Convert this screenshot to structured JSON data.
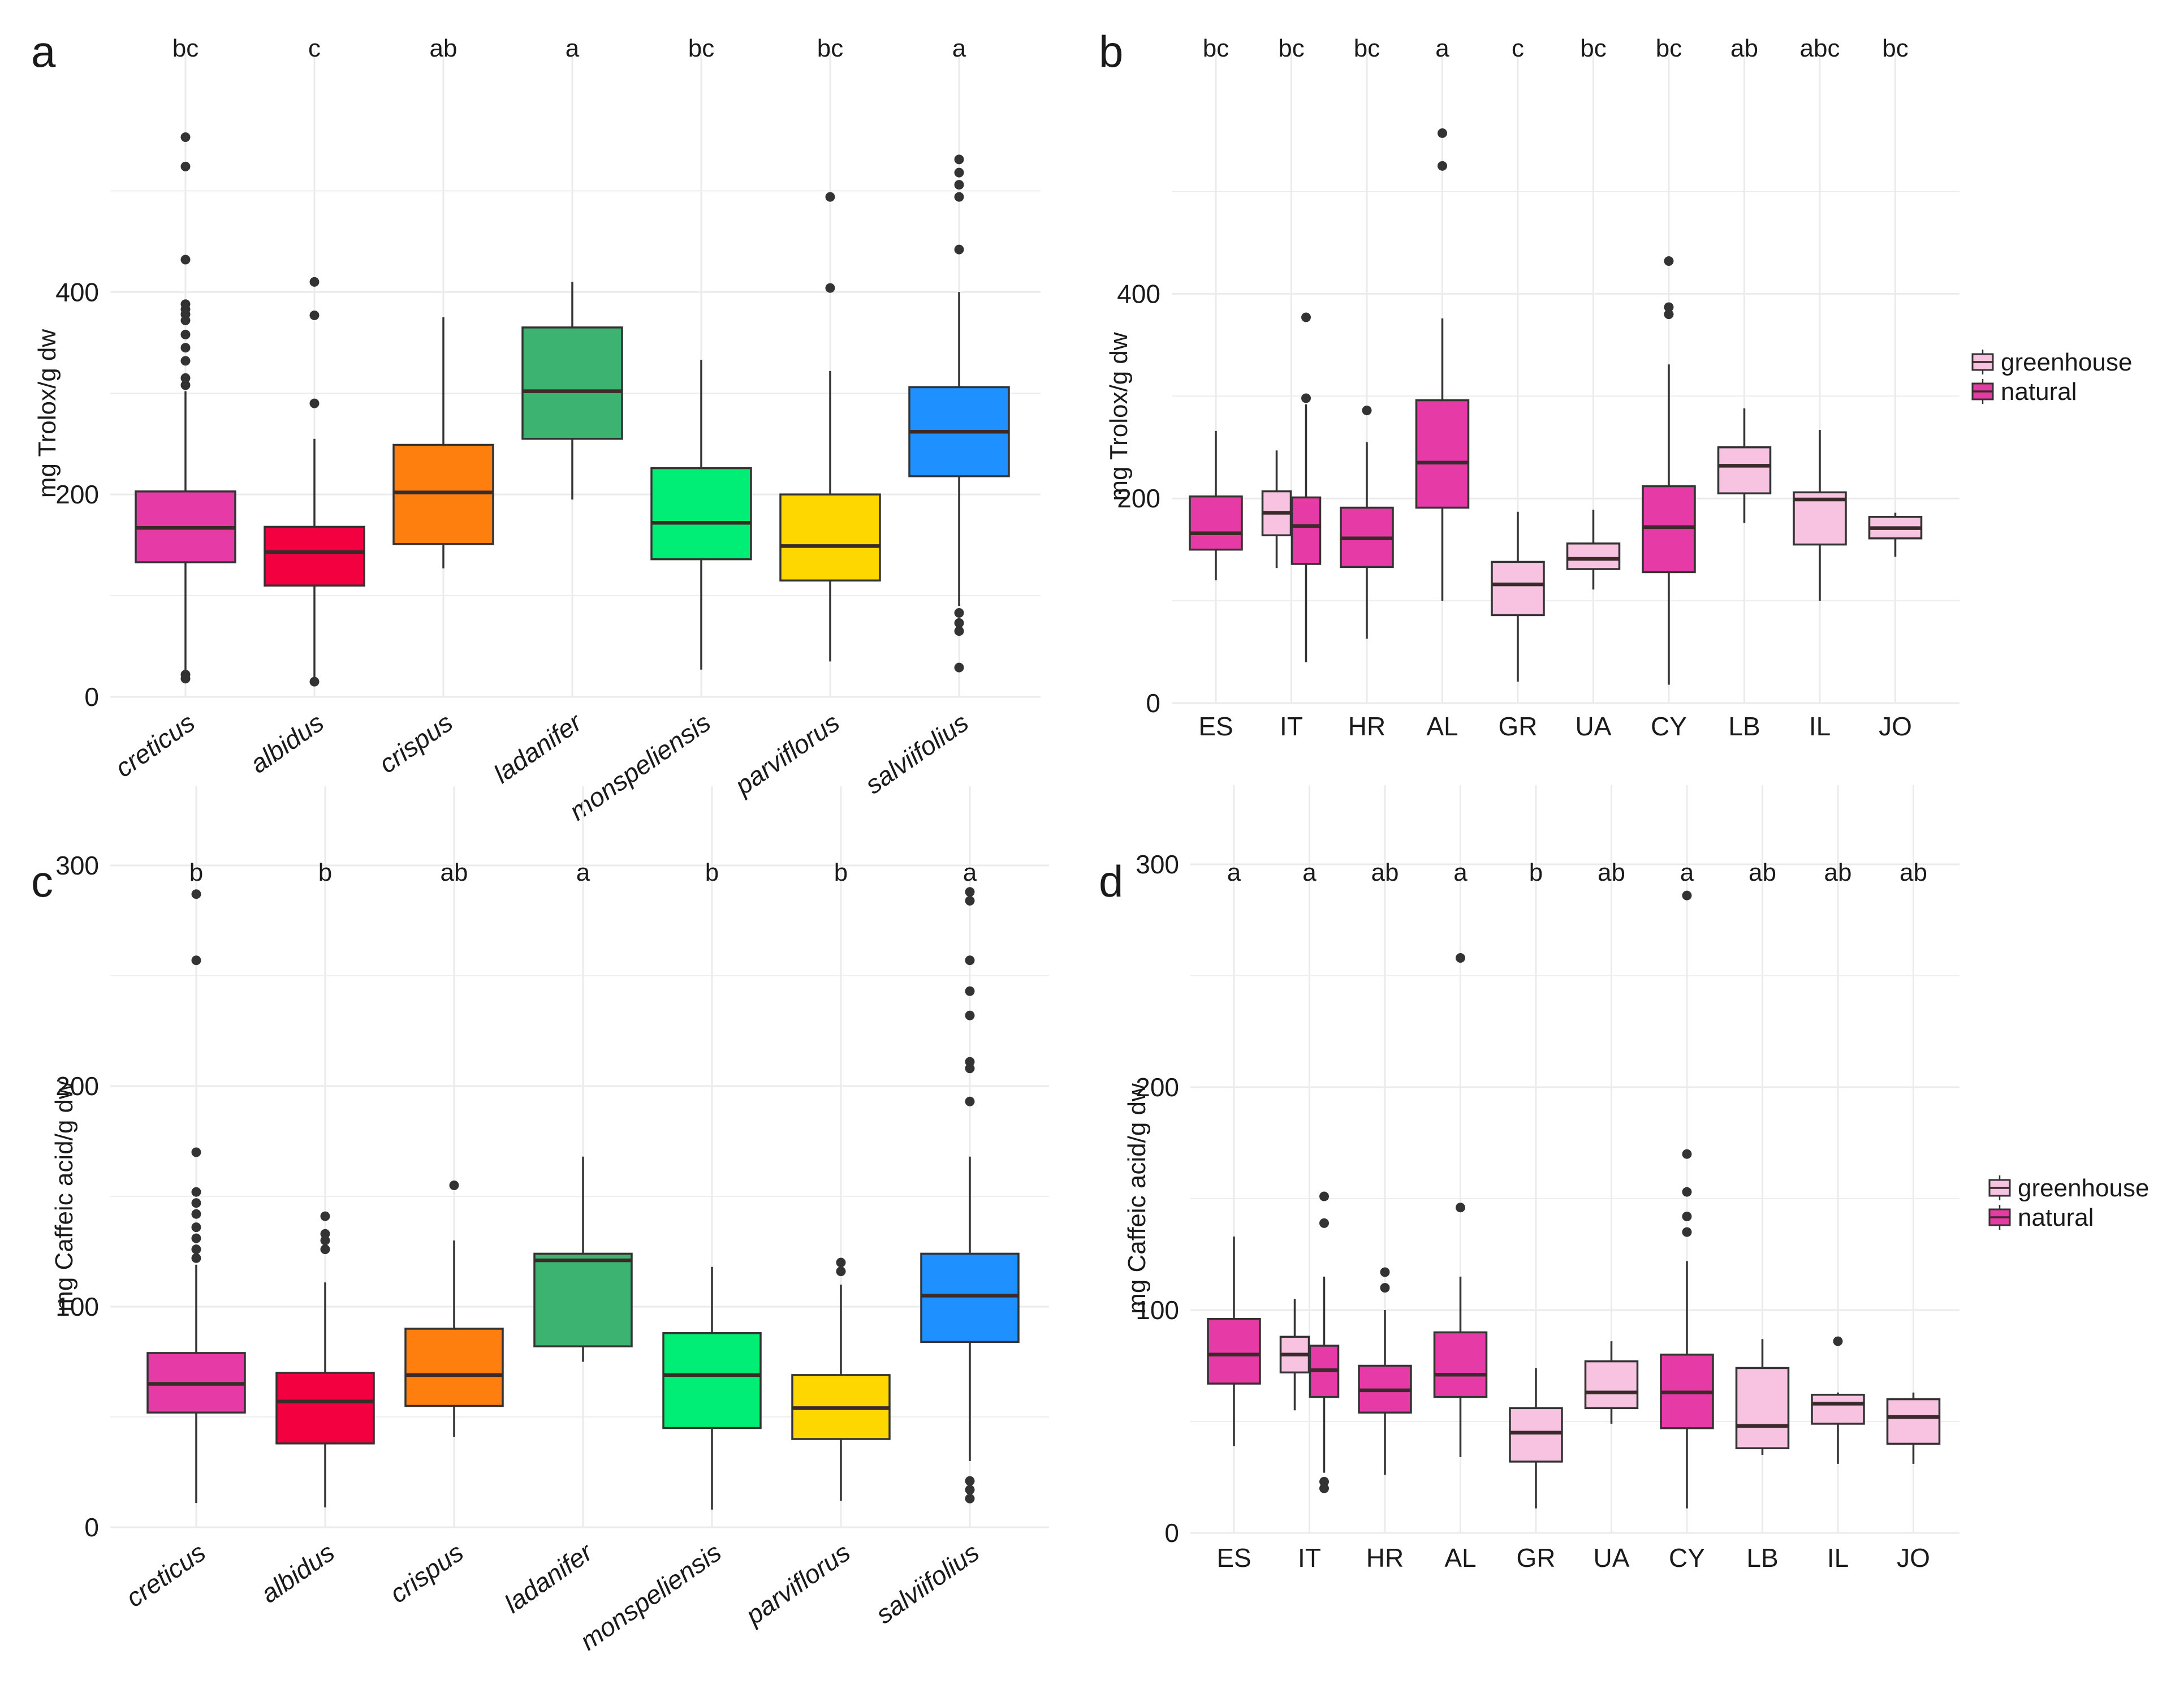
{
  "colors": {
    "creticus": "#e63aa6",
    "albidus": "#f2003f",
    "crispus": "#ff7f0e",
    "ladanifer": "#3cb371",
    "monspeliensis": "#00ee76",
    "parviflorus": "#ffd700",
    "salviifolius": "#1e90ff",
    "greenhouse": "#f7c3e0",
    "natural": "#e63aa6",
    "median": "#3a2a2a",
    "outline": "#333333",
    "grid": "#ebebeb"
  },
  "legend": {
    "greenhouse": "greenhouse",
    "natural": "natural"
  },
  "chart_data": [
    {
      "panel": "a",
      "type": "box",
      "ylabel": "mg Trolox/g dw",
      "ylim": [
        0,
        560
      ],
      "yticks": [
        0,
        200,
        400
      ],
      "categories": [
        "creticus",
        "albidus",
        "crispus",
        "ladanifer",
        "monspeliensis",
        "parviflorus",
        "salviifolius"
      ],
      "italic_categories": true,
      "letters": [
        "bc",
        "c",
        "ab",
        "a",
        "bc",
        "bc",
        "a"
      ],
      "boxes": [
        {
          "name": "creticus",
          "color_key": "creticus",
          "min": 22,
          "q1": 133,
          "median": 167,
          "q3": 203,
          "max": 302,
          "outliers": [
            18,
            22,
            308,
            315,
            332,
            345,
            358,
            372,
            378,
            383,
            388,
            432,
            524,
            553
          ]
        },
        {
          "name": "albidus",
          "color_key": "albidus",
          "min": 18,
          "q1": 110,
          "median": 143,
          "q3": 168,
          "max": 255,
          "outliers": [
            15,
            290,
            377,
            410
          ]
        },
        {
          "name": "crispus",
          "color_key": "crispus",
          "min": 127,
          "q1": 151,
          "median": 202,
          "q3": 249,
          "max": 375,
          "outliers": []
        },
        {
          "name": "ladanifer",
          "color_key": "ladanifer",
          "min": 195,
          "q1": 255,
          "median": 302,
          "q3": 365,
          "max": 410,
          "outliers": []
        },
        {
          "name": "monspeliensis",
          "color_key": "monspeliensis",
          "min": 27,
          "q1": 136,
          "median": 172,
          "q3": 226,
          "max": 333,
          "outliers": []
        },
        {
          "name": "parviflorus",
          "color_key": "parviflorus",
          "min": 35,
          "q1": 115,
          "median": 149,
          "q3": 200,
          "max": 322,
          "outliers": [
            404,
            494
          ]
        },
        {
          "name": "salviifolius",
          "color_key": "salviifolius",
          "min": 90,
          "q1": 218,
          "median": 262,
          "q3": 306,
          "max": 400,
          "outliers": [
            29,
            65,
            73,
            83,
            442,
            494,
            506,
            518,
            531
          ]
        }
      ]
    },
    {
      "panel": "b",
      "type": "box",
      "ylabel": "mg Trolox/g dw",
      "ylim": [
        0,
        560
      ],
      "yticks": [
        0,
        200,
        400
      ],
      "categories": [
        "ES",
        "IT",
        "HR",
        "AL",
        "GR",
        "UA",
        "CY",
        "LB",
        "IL",
        "JO"
      ],
      "italic_categories": false,
      "letters": [
        "bc",
        "bc",
        "bc",
        "a",
        "c",
        "bc",
        "bc",
        "ab",
        "abc",
        "bc"
      ],
      "legend": [
        "greenhouse",
        "natural"
      ],
      "boxes": [
        {
          "cat": "ES",
          "pos": 0,
          "group": "natural",
          "min": 120,
          "q1": 150,
          "median": 166,
          "q3": 202,
          "max": 266,
          "outliers": []
        },
        {
          "cat": "IT",
          "pos": -1,
          "group": "greenhouse",
          "min": 132,
          "q1": 164,
          "median": 186,
          "q3": 207,
          "max": 247,
          "outliers": []
        },
        {
          "cat": "IT",
          "pos": 1,
          "group": "natural",
          "min": 40,
          "q1": 136,
          "median": 173,
          "q3": 201,
          "max": 292,
          "outliers": [
            298,
            377
          ]
        },
        {
          "cat": "HR",
          "pos": 0,
          "group": "natural",
          "min": 63,
          "q1": 133,
          "median": 161,
          "q3": 191,
          "max": 255,
          "outliers": [
            286
          ]
        },
        {
          "cat": "AL",
          "pos": 0,
          "group": "natural",
          "min": 100,
          "q1": 191,
          "median": 235,
          "q3": 296,
          "max": 376,
          "outliers": [
            525,
            557
          ]
        },
        {
          "cat": "GR",
          "pos": 0,
          "group": "greenhouse",
          "min": 21,
          "q1": 86,
          "median": 116,
          "q3": 138,
          "max": 187,
          "outliers": []
        },
        {
          "cat": "UA",
          "pos": 0,
          "group": "greenhouse",
          "min": 111,
          "q1": 131,
          "median": 141,
          "q3": 156,
          "max": 189,
          "outliers": []
        },
        {
          "cat": "CY",
          "pos": 0,
          "group": "natural",
          "min": 18,
          "q1": 128,
          "median": 172,
          "q3": 212,
          "max": 331,
          "outliers": [
            380,
            387,
            432
          ]
        },
        {
          "cat": "LB",
          "pos": 0,
          "group": "greenhouse",
          "min": 176,
          "q1": 205,
          "median": 232,
          "q3": 250,
          "max": 288,
          "outliers": []
        },
        {
          "cat": "IL",
          "pos": 0,
          "group": "greenhouse",
          "min": 100,
          "q1": 155,
          "median": 199,
          "q3": 206,
          "max": 267,
          "outliers": []
        },
        {
          "cat": "JO",
          "pos": 0,
          "group": "greenhouse",
          "min": 143,
          "q1": 161,
          "median": 171,
          "q3": 182,
          "max": 186,
          "outliers": []
        }
      ]
    },
    {
      "panel": "c",
      "type": "box",
      "ylabel": "mg Caffeic acid/g dw",
      "ylim": [
        0,
        300
      ],
      "yticks": [
        0,
        100,
        200,
        300
      ],
      "categories": [
        "creticus",
        "albidus",
        "crispus",
        "ladanifer",
        "monspeliensis",
        "parviflorus",
        "salviifolius"
      ],
      "italic_categories": true,
      "letters": [
        "b",
        "b",
        "ab",
        "a",
        "b",
        "b",
        "a"
      ],
      "boxes": [
        {
          "name": "creticus",
          "color_key": "creticus",
          "min": 11,
          "q1": 52,
          "median": 65,
          "q3": 79,
          "max": 119,
          "outliers": [
            122,
            126,
            131,
            136,
            142,
            147,
            152,
            170,
            257,
            287
          ]
        },
        {
          "name": "albidus",
          "color_key": "albidus",
          "min": 9,
          "q1": 38,
          "median": 57,
          "q3": 70,
          "max": 111,
          "outliers": [
            126,
            130,
            133,
            141
          ]
        },
        {
          "name": "crispus",
          "color_key": "crispus",
          "min": 41,
          "q1": 55,
          "median": 69,
          "q3": 90,
          "max": 130,
          "outliers": [
            155
          ]
        },
        {
          "name": "ladanifer",
          "color_key": "ladanifer",
          "min": 75,
          "q1": 82,
          "median": 121,
          "q3": 124,
          "max": 168,
          "outliers": []
        },
        {
          "name": "monspeliensis",
          "color_key": "monspeliensis",
          "min": 8,
          "q1": 45,
          "median": 69,
          "q3": 88,
          "max": 118,
          "outliers": []
        },
        {
          "name": "parviflorus",
          "color_key": "parviflorus",
          "min": 12,
          "q1": 40,
          "median": 54,
          "q3": 69,
          "max": 110,
          "outliers": [
            116,
            120
          ]
        },
        {
          "name": "salviifolius",
          "color_key": "salviifolius",
          "min": 30,
          "q1": 84,
          "median": 105,
          "q3": 124,
          "max": 168,
          "outliers": [
            13,
            17,
            21,
            193,
            208,
            211,
            232,
            243,
            257,
            284,
            288
          ]
        }
      ]
    },
    {
      "panel": "d",
      "type": "box",
      "ylabel": "mg Caffeic acid/g dw",
      "ylim": [
        0,
        300
      ],
      "yticks": [
        0,
        100,
        200,
        300
      ],
      "categories": [
        "ES",
        "IT",
        "HR",
        "AL",
        "GR",
        "UA",
        "CY",
        "LB",
        "IL",
        "JO"
      ],
      "italic_categories": false,
      "letters": [
        "a",
        "a",
        "ab",
        "a",
        "b",
        "ab",
        "a",
        "ab",
        "ab",
        "ab"
      ],
      "legend": [
        "greenhouse",
        "natural"
      ],
      "boxes": [
        {
          "cat": "ES",
          "pos": 0,
          "group": "natural",
          "min": 39,
          "q1": 67,
          "median": 80,
          "q3": 96,
          "max": 133,
          "outliers": []
        },
        {
          "cat": "IT",
          "pos": -1,
          "group": "greenhouse",
          "min": 55,
          "q1": 72,
          "median": 80,
          "q3": 88,
          "max": 105,
          "outliers": []
        },
        {
          "cat": "IT",
          "pos": 1,
          "group": "natural",
          "min": 27,
          "q1": 61,
          "median": 73,
          "q3": 84,
          "max": 115,
          "outliers": [
            20,
            23,
            139,
            151
          ]
        },
        {
          "cat": "HR",
          "pos": 0,
          "group": "natural",
          "min": 26,
          "q1": 54,
          "median": 64,
          "q3": 75,
          "max": 100,
          "outliers": [
            110,
            117
          ]
        },
        {
          "cat": "AL",
          "pos": 0,
          "group": "natural",
          "min": 34,
          "q1": 61,
          "median": 71,
          "q3": 90,
          "max": 115,
          "outliers": [
            146,
            258
          ]
        },
        {
          "cat": "GR",
          "pos": 0,
          "group": "greenhouse",
          "min": 11,
          "q1": 32,
          "median": 45,
          "q3": 56,
          "max": 74,
          "outliers": []
        },
        {
          "cat": "UA",
          "pos": 0,
          "group": "greenhouse",
          "min": 49,
          "q1": 56,
          "median": 63,
          "q3": 77,
          "max": 86,
          "outliers": []
        },
        {
          "cat": "CY",
          "pos": 0,
          "group": "natural",
          "min": 11,
          "q1": 47,
          "median": 63,
          "q3": 80,
          "max": 122,
          "outliers": [
            135,
            142,
            153,
            170,
            286
          ]
        },
        {
          "cat": "LB",
          "pos": 0,
          "group": "greenhouse",
          "min": 35,
          "q1": 38,
          "median": 48,
          "q3": 74,
          "max": 87,
          "outliers": []
        },
        {
          "cat": "IL",
          "pos": 0,
          "group": "greenhouse",
          "min": 31,
          "q1": 49,
          "median": 58,
          "q3": 62,
          "max": 63,
          "outliers": [
            86
          ]
        },
        {
          "cat": "JO",
          "pos": 0,
          "group": "greenhouse",
          "min": 31,
          "q1": 40,
          "median": 52,
          "q3": 60,
          "max": 63,
          "outliers": []
        }
      ]
    }
  ]
}
